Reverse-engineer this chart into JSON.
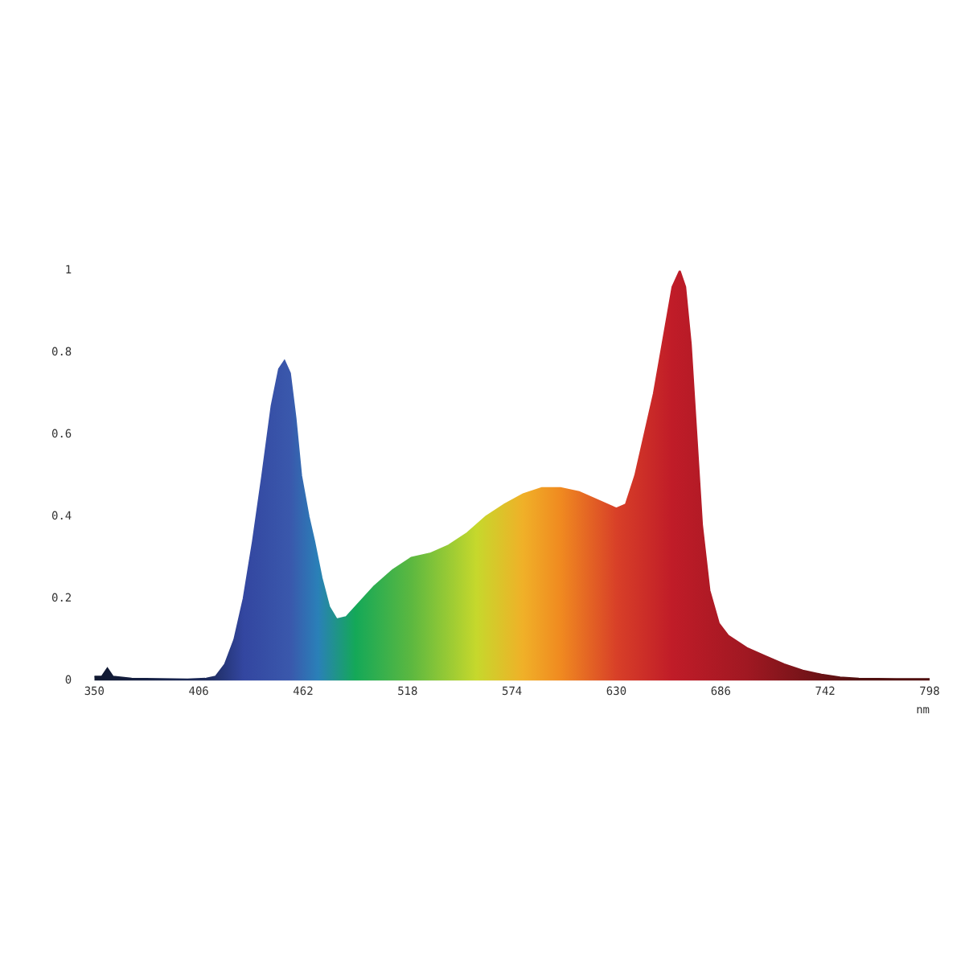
{
  "chart_data": {
    "type": "area",
    "xlabel": "nm",
    "x": [
      350,
      354,
      357,
      360,
      370,
      400,
      410,
      415,
      420,
      425,
      430,
      435,
      440,
      445,
      449,
      452,
      455,
      458,
      461,
      465,
      468,
      472,
      476,
      480,
      485,
      490,
      500,
      510,
      520,
      530,
      540,
      550,
      560,
      570,
      580,
      590,
      600,
      610,
      620,
      630,
      635,
      640,
      645,
      650,
      655,
      660,
      664,
      667,
      670,
      673,
      676,
      680,
      685,
      690,
      700,
      710,
      720,
      730,
      740,
      750,
      760,
      780,
      798
    ],
    "series": [
      {
        "values": [
          0.01,
          0.01,
          0.03,
          0.01,
          0.005,
          0.003,
          0.005,
          0.01,
          0.04,
          0.1,
          0.2,
          0.34,
          0.5,
          0.67,
          0.76,
          0.78,
          0.75,
          0.64,
          0.5,
          0.4,
          0.34,
          0.25,
          0.18,
          0.15,
          0.155,
          0.18,
          0.23,
          0.27,
          0.3,
          0.31,
          0.33,
          0.36,
          0.4,
          0.43,
          0.455,
          0.47,
          0.47,
          0.46,
          0.44,
          0.42,
          0.43,
          0.5,
          0.6,
          0.7,
          0.83,
          0.96,
          1.0,
          0.96,
          0.82,
          0.6,
          0.38,
          0.22,
          0.14,
          0.11,
          0.08,
          0.06,
          0.04,
          0.025,
          0.015,
          0.008,
          0.005,
          0.004,
          0.004
        ]
      }
    ],
    "xlim": [
      350,
      798
    ],
    "xticks": [
      350,
      406,
      462,
      518,
      574,
      630,
      686,
      742,
      798
    ],
    "ylim": [
      0,
      1
    ],
    "yticks": [
      0,
      0.2,
      0.4,
      0.6,
      0.8,
      1
    ],
    "grid": false,
    "legend": false
  }
}
